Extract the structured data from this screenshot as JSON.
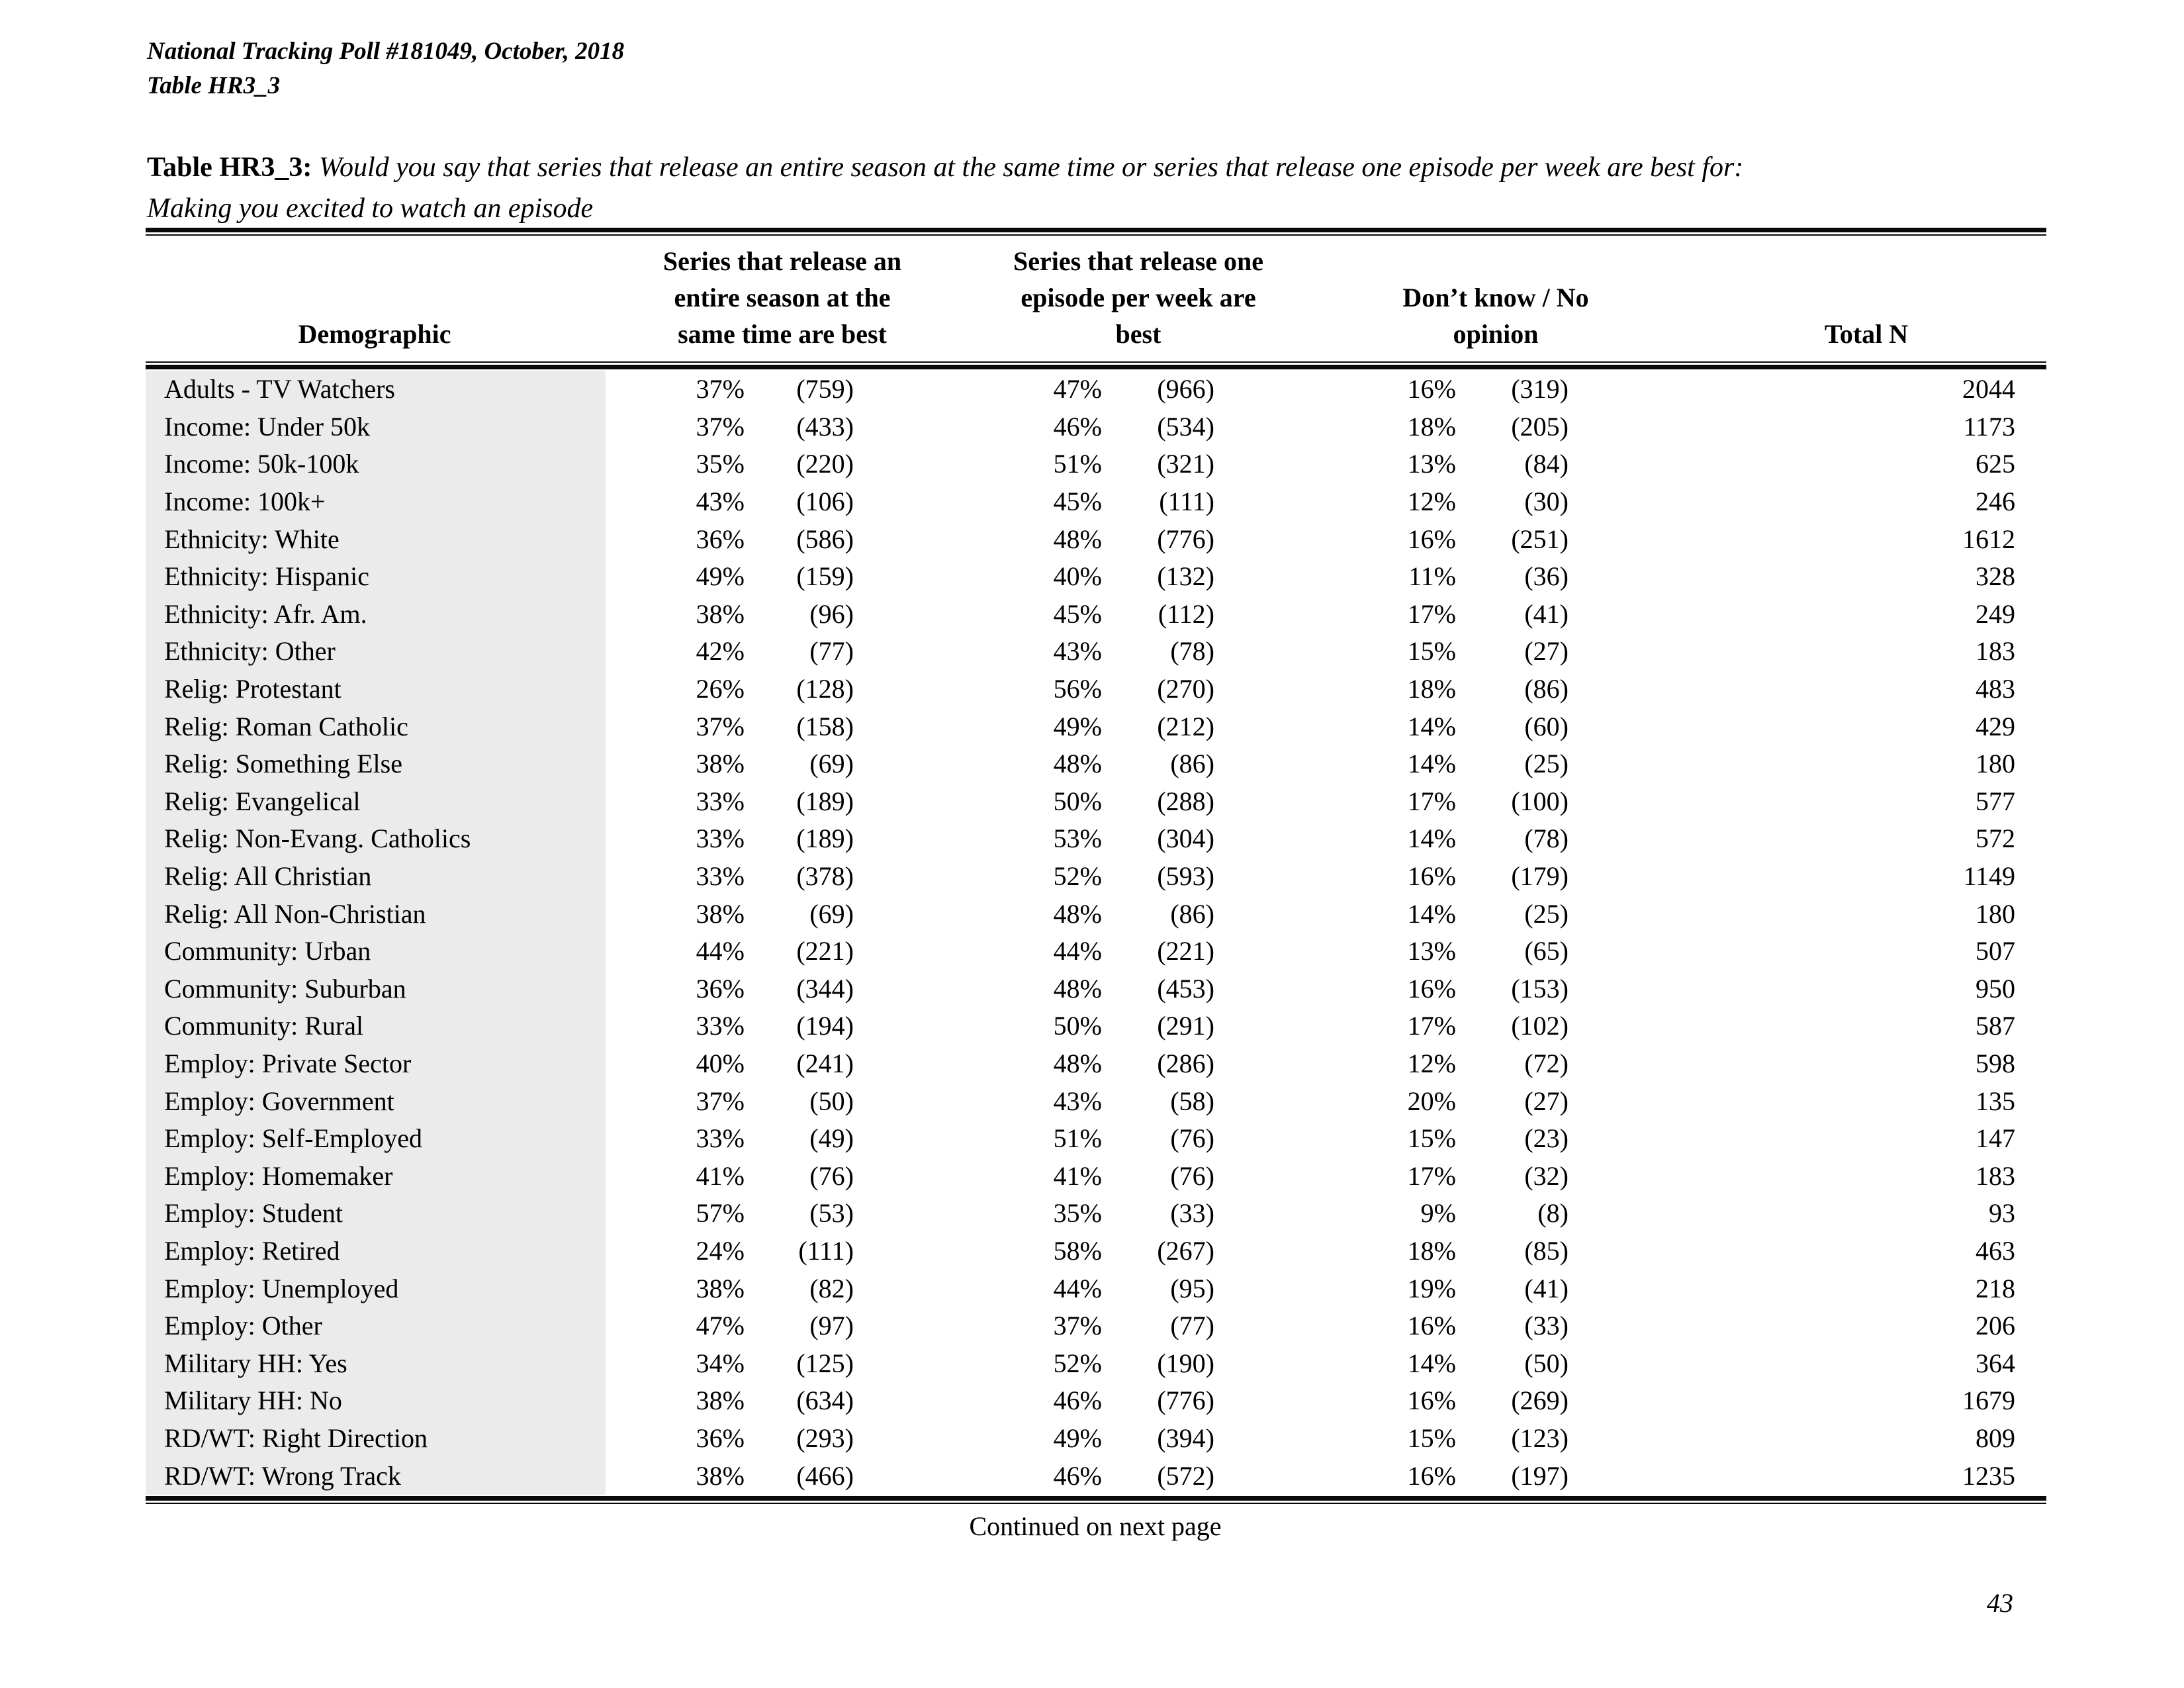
{
  "page": {
    "header_line1": "National Tracking Poll #181049, October, 2018",
    "header_line2": "Table HR3_3",
    "title_prefix": "Table HR3_3:",
    "title_line1": "Would you say that series that release an entire season at the same time or series that release one episode per week are best for:",
    "title_line2": "Making you excited to watch an episode",
    "continued": "Continued on next page",
    "page_number": "43"
  },
  "table": {
    "col_headers": {
      "demographic": "Demographic",
      "season": "Series that release an\nentire season at the\nsame time are best",
      "weekly": "Series that release one\nepisode per week are\nbest",
      "dontknow": "Don’t know / No\nopinion",
      "total": "Total N"
    },
    "rows": [
      [
        "Adults - TV Watchers",
        "37%",
        "(759)",
        "47%",
        "(966)",
        "16%",
        "(319)",
        "2044"
      ],
      [
        "Income: Under 50k",
        "37%",
        "(433)",
        "46%",
        "(534)",
        "18%",
        "(205)",
        "1173"
      ],
      [
        "Income: 50k-100k",
        "35%",
        "(220)",
        "51%",
        "(321)",
        "13%",
        "(84)",
        "625"
      ],
      [
        "Income: 100k+",
        "43%",
        "(106)",
        "45%",
        "(111)",
        "12%",
        "(30)",
        "246"
      ],
      [
        "Ethnicity: White",
        "36%",
        "(586)",
        "48%",
        "(776)",
        "16%",
        "(251)",
        "1612"
      ],
      [
        "Ethnicity: Hispanic",
        "49%",
        "(159)",
        "40%",
        "(132)",
        "11%",
        "(36)",
        "328"
      ],
      [
        "Ethnicity: Afr. Am.",
        "38%",
        "(96)",
        "45%",
        "(112)",
        "17%",
        "(41)",
        "249"
      ],
      [
        "Ethnicity: Other",
        "42%",
        "(77)",
        "43%",
        "(78)",
        "15%",
        "(27)",
        "183"
      ],
      [
        "Relig: Protestant",
        "26%",
        "(128)",
        "56%",
        "(270)",
        "18%",
        "(86)",
        "483"
      ],
      [
        "Relig: Roman Catholic",
        "37%",
        "(158)",
        "49%",
        "(212)",
        "14%",
        "(60)",
        "429"
      ],
      [
        "Relig: Something Else",
        "38%",
        "(69)",
        "48%",
        "(86)",
        "14%",
        "(25)",
        "180"
      ],
      [
        "Relig: Evangelical",
        "33%",
        "(189)",
        "50%",
        "(288)",
        "17%",
        "(100)",
        "577"
      ],
      [
        "Relig: Non-Evang. Catholics",
        "33%",
        "(189)",
        "53%",
        "(304)",
        "14%",
        "(78)",
        "572"
      ],
      [
        "Relig: All Christian",
        "33%",
        "(378)",
        "52%",
        "(593)",
        "16%",
        "(179)",
        "1149"
      ],
      [
        "Relig: All Non-Christian",
        "38%",
        "(69)",
        "48%",
        "(86)",
        "14%",
        "(25)",
        "180"
      ],
      [
        "Community: Urban",
        "44%",
        "(221)",
        "44%",
        "(221)",
        "13%",
        "(65)",
        "507"
      ],
      [
        "Community: Suburban",
        "36%",
        "(344)",
        "48%",
        "(453)",
        "16%",
        "(153)",
        "950"
      ],
      [
        "Community: Rural",
        "33%",
        "(194)",
        "50%",
        "(291)",
        "17%",
        "(102)",
        "587"
      ],
      [
        "Employ: Private Sector",
        "40%",
        "(241)",
        "48%",
        "(286)",
        "12%",
        "(72)",
        "598"
      ],
      [
        "Employ: Government",
        "37%",
        "(50)",
        "43%",
        "(58)",
        "20%",
        "(27)",
        "135"
      ],
      [
        "Employ: Self-Employed",
        "33%",
        "(49)",
        "51%",
        "(76)",
        "15%",
        "(23)",
        "147"
      ],
      [
        "Employ: Homemaker",
        "41%",
        "(76)",
        "41%",
        "(76)",
        "17%",
        "(32)",
        "183"
      ],
      [
        "Employ: Student",
        "57%",
        "(53)",
        "35%",
        "(33)",
        "9%",
        "(8)",
        "93"
      ],
      [
        "Employ: Retired",
        "24%",
        "(111)",
        "58%",
        "(267)",
        "18%",
        "(85)",
        "463"
      ],
      [
        "Employ: Unemployed",
        "38%",
        "(82)",
        "44%",
        "(95)",
        "19%",
        "(41)",
        "218"
      ],
      [
        "Employ: Other",
        "47%",
        "(97)",
        "37%",
        "(77)",
        "16%",
        "(33)",
        "206"
      ],
      [
        "Military HH: Yes",
        "34%",
        "(125)",
        "52%",
        "(190)",
        "14%",
        "(50)",
        "364"
      ],
      [
        "Military HH: No",
        "38%",
        "(634)",
        "46%",
        "(776)",
        "16%",
        "(269)",
        "1679"
      ],
      [
        "RD/WT: Right Direction",
        "36%",
        "(293)",
        "49%",
        "(394)",
        "15%",
        "(123)",
        "809"
      ],
      [
        "RD/WT: Wrong Track",
        "38%",
        "(466)",
        "46%",
        "(572)",
        "16%",
        "(197)",
        "1235"
      ]
    ]
  }
}
